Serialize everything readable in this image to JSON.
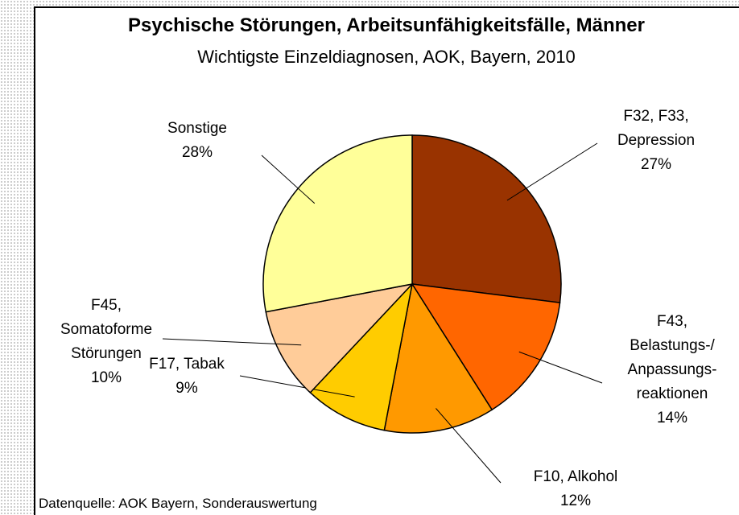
{
  "chart_data": {
    "type": "pie",
    "title": "Psychische Störungen, Arbeitsunfähigkeitsfälle, Männer",
    "subtitle": "Wichtigste Einzeldiagnosen, AOK, Bayern, 2010",
    "categories": [
      "F32, F33,\nDepression",
      "F43,\nBelastungs-/\nAnpassungs-\nreaktionen",
      "F10, Alkohol",
      "F17, Tabak",
      "F45,\nSomatoforme\nStörungen",
      "Sonstige"
    ],
    "values": [
      27,
      14,
      12,
      9,
      10,
      28
    ],
    "value_labels": [
      "27%",
      "14%",
      "12%",
      "9%",
      "10%",
      "28%"
    ],
    "colors": [
      "#993300",
      "#ff6600",
      "#ff9900",
      "#ffcc00",
      "#ffcc99",
      "#ffff99"
    ],
    "source": "Datenquelle: AOK Bayern, Sonderauswertung"
  }
}
